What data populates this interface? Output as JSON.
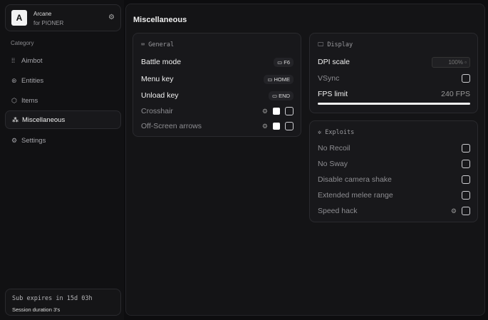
{
  "brand": {
    "logo": "A",
    "name": "Arcane",
    "subtitle": "for PIONER"
  },
  "sidebar": {
    "category_label": "Category",
    "items": [
      {
        "label": "Aimbot",
        "icon": "crosshair-dots-icon"
      },
      {
        "label": "Entities",
        "icon": "entities-icon"
      },
      {
        "label": "Items",
        "icon": "cube-icon"
      },
      {
        "label": "Miscellaneous",
        "icon": "misc-icon",
        "active": true
      },
      {
        "label": "Settings",
        "icon": "gear-icon"
      }
    ]
  },
  "footer": {
    "subscription": "Sub expires in 15d 03h",
    "session": "Session duration 3's"
  },
  "main": {
    "title": "Miscellaneous"
  },
  "general": {
    "header": "General",
    "battle_mode": {
      "label": "Battle mode",
      "key": "F6"
    },
    "menu_key": {
      "label": "Menu key",
      "key": "HOME"
    },
    "unload_key": {
      "label": "Unload key",
      "key": "END"
    },
    "crosshair": {
      "label": "Crosshair",
      "color": "#ffffff",
      "enabled": false
    },
    "offscreen": {
      "label": "Off-Screen arrows",
      "color": "#ffffff",
      "enabled": false
    }
  },
  "display": {
    "header": "Display",
    "dpi": {
      "label": "DPI scale",
      "value": "100%"
    },
    "vsync": {
      "label": "VSync",
      "enabled": false
    },
    "fps": {
      "label": "FPS limit",
      "value": "240 FPS",
      "fraction": 1.0
    }
  },
  "exploits": {
    "header": "Exploits",
    "items": [
      {
        "label": "No Recoil"
      },
      {
        "label": "No Sway"
      },
      {
        "label": "Disable camera shake"
      },
      {
        "label": "Extended melee range"
      },
      {
        "label": "Speed hack",
        "has_settings": true
      }
    ]
  }
}
